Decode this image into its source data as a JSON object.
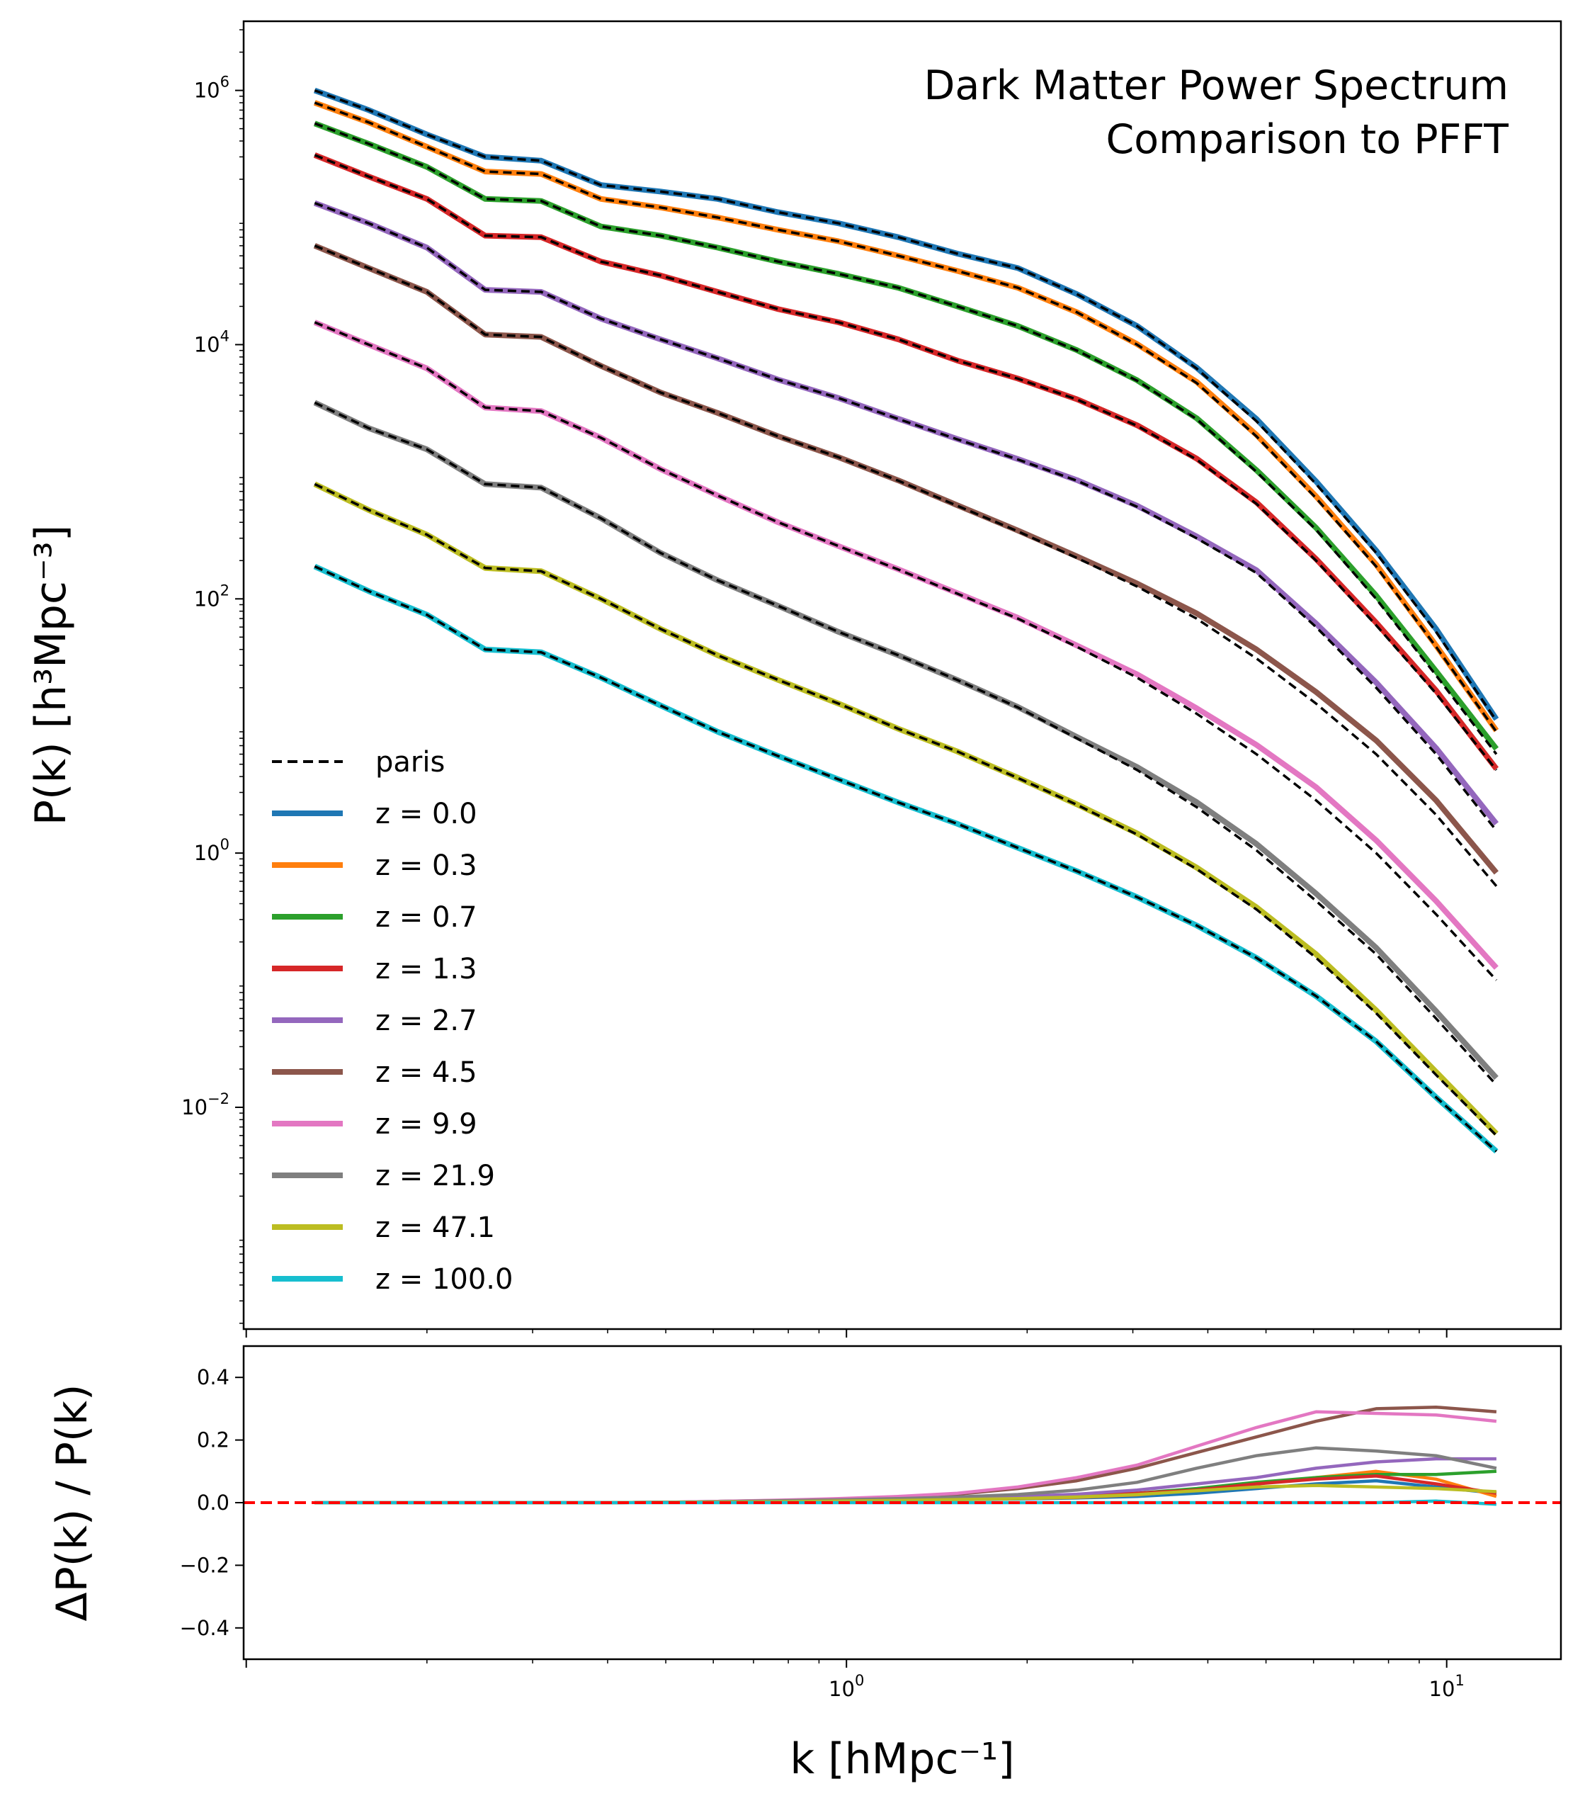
{
  "chart_data": [
    {
      "type": "line",
      "panel": "power-spectrum",
      "title": "Dark Matter Power Spectrum",
      "subtitle": "Comparison to PFFT",
      "ylabel": "P(k)   [h³Mpc⁻³]",
      "xscale": "log",
      "yscale": "log",
      "xlim": [
        0.099,
        15.5
      ],
      "ylim": [
        0.00018,
        3500000
      ],
      "yticks": [
        {
          "value": 1000000,
          "base": "10",
          "exp": "6"
        },
        {
          "value": 10000,
          "base": "10",
          "exp": "4"
        },
        {
          "value": 100,
          "base": "10",
          "exp": "2"
        },
        {
          "value": 1,
          "base": "10",
          "exp": "0"
        },
        {
          "value": 0.01,
          "base": "10",
          "exp": "−2"
        }
      ],
      "x": [
        0.13,
        0.16,
        0.2,
        0.25,
        0.31,
        0.39,
        0.49,
        0.61,
        0.77,
        0.97,
        1.22,
        1.53,
        1.93,
        2.42,
        3.05,
        3.83,
        4.82,
        6.06,
        7.63,
        9.6,
        12.1
      ],
      "reference": {
        "name": "paris",
        "color": "#000000",
        "style": "dashed",
        "series": [
          [
            1000000,
            700000,
            450000,
            300000,
            280000,
            180000,
            160000,
            140000,
            110000,
            90000,
            70000,
            52000,
            40000,
            25000,
            14000,
            6500,
            2500,
            800,
            230,
            55,
            11
          ],
          [
            800000,
            560000,
            360000,
            230000,
            220000,
            140000,
            120000,
            100000,
            80000,
            65000,
            50000,
            38000,
            28000,
            18000,
            10000,
            5000,
            1900,
            620,
            180,
            42,
            9
          ],
          [
            550000,
            380000,
            250000,
            140000,
            135000,
            85000,
            72000,
            58000,
            45000,
            36000,
            28000,
            20000,
            14000,
            9000,
            5200,
            2600,
            1000,
            350,
            100,
            25,
            6
          ],
          [
            310000,
            210000,
            140000,
            72000,
            70000,
            45000,
            35000,
            26000,
            19000,
            15000,
            11000,
            7500,
            5400,
            3700,
            2300,
            1250,
            560,
            200,
            62,
            18,
            4.5
          ],
          [
            130000,
            90000,
            58000,
            27000,
            26000,
            16000,
            11000,
            7800,
            5300,
            3800,
            2600,
            1800,
            1250,
            850,
            530,
            300,
            160,
            60,
            20,
            6,
            1.5
          ],
          [
            60000,
            40000,
            26000,
            12000,
            11500,
            6800,
            4200,
            2900,
            1900,
            1300,
            850,
            540,
            340,
            210,
            125,
            70,
            34,
            15,
            6,
            2,
            0.55
          ],
          [
            15000,
            10000,
            6500,
            3200,
            3000,
            1850,
            1050,
            650,
            400,
            260,
            170,
            110,
            70,
            42,
            24,
            12.5,
            6,
            2.6,
            1,
            0.33,
            0.1
          ],
          [
            3500,
            2200,
            1500,
            800,
            750,
            430,
            230,
            140,
            88,
            55,
            36,
            23,
            14,
            8,
            4.5,
            2.3,
            1.05,
            0.42,
            0.16,
            0.05,
            0.015
          ],
          [
            800,
            500,
            320,
            175,
            165,
            100,
            58,
            36,
            23,
            15,
            9.5,
            6.3,
            3.9,
            2.4,
            1.4,
            0.75,
            0.36,
            0.15,
            0.055,
            0.018,
            0.006
          ],
          [
            180,
            115,
            75,
            40,
            38,
            24,
            14.5,
            9,
            5.8,
            3.8,
            2.5,
            1.7,
            1.1,
            0.72,
            0.45,
            0.27,
            0.15,
            0.075,
            0.033,
            0.012,
            0.0045
          ]
        ]
      },
      "series": [
        {
          "name": "z = 0.0",
          "color": "#1f77b4",
          "values": [
            1000000,
            700000,
            450000,
            300000,
            280000,
            180000,
            160000,
            140000,
            110000,
            90000,
            70000,
            52000,
            40000,
            25000,
            14000,
            6600,
            2600,
            840,
            240,
            58,
            11.3
          ]
        },
        {
          "name": "z = 0.3",
          "color": "#ff7f0e",
          "values": [
            800000,
            560000,
            360000,
            230000,
            220000,
            140000,
            120000,
            100000,
            80000,
            65000,
            50000,
            38000,
            28000,
            18000,
            10100,
            5100,
            1950,
            640,
            186,
            43,
            9.2
          ]
        },
        {
          "name": "z = 0.7",
          "color": "#2ca02c",
          "values": [
            550000,
            380000,
            250000,
            140000,
            135000,
            85000,
            72000,
            58000,
            45000,
            36000,
            28000,
            20000,
            14000,
            9050,
            5250,
            2640,
            1030,
            362,
            106,
            27,
            6.6
          ]
        },
        {
          "name": "z = 1.3",
          "color": "#d62728",
          "values": [
            310000,
            210000,
            140000,
            72000,
            70000,
            45000,
            35000,
            26000,
            19000,
            15000,
            11000,
            7500,
            5410,
            3720,
            2320,
            1270,
            574,
            206,
            65,
            19,
            4.6
          ]
        },
        {
          "name": "z = 2.7",
          "color": "#9467bd",
          "values": [
            130000,
            90000,
            58000,
            27000,
            26000,
            16000,
            11000,
            7800,
            5300,
            3800,
            2610,
            1810,
            1260,
            860,
            540,
            310,
            168,
            64,
            22,
            6.7,
            1.7
          ]
        },
        {
          "name": "z = 4.5",
          "color": "#8c564b",
          "values": [
            60000,
            40000,
            26000,
            12000,
            11500,
            6800,
            4200,
            2900,
            1900,
            1300,
            855,
            545,
            345,
            216,
            132,
            77,
            40,
            18.5,
            7.7,
            2.6,
            0.7
          ]
        },
        {
          "name": "z = 9.9",
          "color": "#e377c2",
          "values": [
            15000,
            10000,
            6500,
            3200,
            3000,
            1850,
            1050,
            650,
            400,
            260,
            171,
            111,
            71,
            43,
            25.5,
            13.8,
            7.1,
            3.3,
            1.26,
            0.42,
            0.125
          ]
        },
        {
          "name": "z = 21.9",
          "color": "#7f7f7f",
          "values": [
            3500,
            2200,
            1500,
            800,
            750,
            430,
            230,
            140,
            88,
            55,
            36,
            23,
            14.1,
            8.2,
            4.75,
            2.52,
            1.18,
            0.48,
            0.18,
            0.057,
            0.017
          ]
        },
        {
          "name": "z = 47.1",
          "color": "#bcbd22",
          "values": [
            800,
            500,
            320,
            175,
            165,
            100,
            58,
            36,
            23,
            15,
            9.5,
            6.3,
            3.92,
            2.42,
            1.43,
            0.77,
            0.375,
            0.16,
            0.058,
            0.019,
            0.0062
          ]
        },
        {
          "name": "z = 100.0",
          "color": "#17becf",
          "values": [
            180,
            115,
            75,
            40,
            38,
            24,
            14.5,
            9,
            5.8,
            3.8,
            2.5,
            1.7,
            1.1,
            0.72,
            0.45,
            0.27,
            0.15,
            0.075,
            0.033,
            0.012,
            0.0045
          ]
        }
      ],
      "legend": {
        "placement": "lower-left",
        "entries": [
          "paris",
          "z = 0.0",
          "z = 0.3",
          "z = 0.7",
          "z = 1.3",
          "z = 2.7",
          "z = 4.5",
          "z = 9.9",
          "z = 21.9",
          "z = 47.1",
          "z = 100.0"
        ]
      },
      "grid": false
    },
    {
      "type": "line",
      "panel": "residuals",
      "xlabel": "k  [hMpc⁻¹]",
      "ylabel": "ΔP(k) / P(k)",
      "xscale": "log",
      "xlim": [
        0.099,
        15.5
      ],
      "ylim": [
        -0.5,
        0.5
      ],
      "xticks": [
        {
          "value": 1,
          "base": "10",
          "exp": "0"
        },
        {
          "value": 10,
          "base": "10",
          "exp": "1"
        }
      ],
      "yticks": [
        {
          "value": 0.4,
          "label": "0.4"
        },
        {
          "value": 0.2,
          "label": "0.2"
        },
        {
          "value": 0.0,
          "label": "0.0"
        },
        {
          "value": -0.2,
          "label": "−0.2"
        },
        {
          "value": -0.4,
          "label": "−0.4"
        }
      ],
      "reference_line": {
        "value": 0.0,
        "color": "#ff0000",
        "style": "dashed"
      },
      "x": [
        0.13,
        0.16,
        0.2,
        0.25,
        0.31,
        0.39,
        0.49,
        0.61,
        0.77,
        0.97,
        1.22,
        1.53,
        1.93,
        2.42,
        3.05,
        3.83,
        4.82,
        6.06,
        7.63,
        9.6,
        12.1
      ],
      "series": [
        {
          "name": "z = 0.0",
          "color": "#1f77b4",
          "values": [
            0,
            0,
            0,
            0,
            0,
            0,
            0.001,
            0.002,
            0.004,
            0.006,
            0.008,
            0.01,
            0.012,
            0.015,
            0.02,
            0.03,
            0.045,
            0.06,
            0.07,
            0.05,
            0.03
          ]
        },
        {
          "name": "z = 0.3",
          "color": "#ff7f0e",
          "values": [
            0,
            0,
            0,
            0,
            0,
            0,
            0.001,
            0.002,
            0.004,
            0.006,
            0.008,
            0.01,
            0.013,
            0.017,
            0.025,
            0.04,
            0.06,
            0.08,
            0.1,
            0.075,
            0.02
          ]
        },
        {
          "name": "z = 0.7",
          "color": "#2ca02c",
          "values": [
            0,
            0,
            0,
            0,
            0,
            0,
            0.001,
            0.002,
            0.004,
            0.006,
            0.008,
            0.011,
            0.015,
            0.02,
            0.03,
            0.045,
            0.065,
            0.08,
            0.09,
            0.09,
            0.1
          ]
        },
        {
          "name": "z = 1.3",
          "color": "#d62728",
          "values": [
            0,
            0,
            0,
            0,
            0,
            0,
            0.001,
            0.002,
            0.004,
            0.006,
            0.008,
            0.011,
            0.015,
            0.02,
            0.03,
            0.04,
            0.06,
            0.075,
            0.085,
            0.06,
            0.03
          ]
        },
        {
          "name": "z = 2.7",
          "color": "#9467bd",
          "values": [
            0,
            0,
            0,
            0,
            0,
            0,
            0.001,
            0.003,
            0.005,
            0.008,
            0.011,
            0.015,
            0.02,
            0.027,
            0.04,
            0.06,
            0.08,
            0.11,
            0.13,
            0.14,
            0.14
          ]
        },
        {
          "name": "z = 4.5",
          "color": "#8c564b",
          "values": [
            0,
            0,
            0,
            0,
            0,
            0,
            0.001,
            0.004,
            0.007,
            0.012,
            0.018,
            0.027,
            0.045,
            0.07,
            0.11,
            0.16,
            0.21,
            0.26,
            0.3,
            0.305,
            0.29
          ]
        },
        {
          "name": "z = 9.9",
          "color": "#e377c2",
          "values": [
            0,
            0,
            0,
            0,
            0,
            0,
            0.001,
            0.004,
            0.008,
            0.013,
            0.02,
            0.03,
            0.05,
            0.08,
            0.12,
            0.18,
            0.24,
            0.29,
            0.285,
            0.28,
            0.26
          ]
        },
        {
          "name": "z = 21.9",
          "color": "#7f7f7f",
          "values": [
            0,
            0,
            0,
            0,
            0,
            0,
            0.001,
            0.003,
            0.006,
            0.009,
            0.013,
            0.018,
            0.026,
            0.04,
            0.065,
            0.11,
            0.15,
            0.175,
            0.165,
            0.15,
            0.11
          ]
        },
        {
          "name": "z = 47.1",
          "color": "#bcbd22",
          "values": [
            0,
            0,
            0,
            0,
            0,
            0,
            0.001,
            0.002,
            0.003,
            0.005,
            0.007,
            0.01,
            0.013,
            0.018,
            0.026,
            0.038,
            0.05,
            0.055,
            0.05,
            0.045,
            0.035
          ]
        },
        {
          "name": "z = 100.0",
          "color": "#17becf",
          "values": [
            0,
            0,
            0,
            0,
            0,
            0,
            0,
            0,
            0,
            0,
            0,
            0,
            0,
            0,
            0,
            0,
            0,
            0,
            0,
            0.005,
            -0.005
          ]
        }
      ],
      "grid": false
    }
  ]
}
